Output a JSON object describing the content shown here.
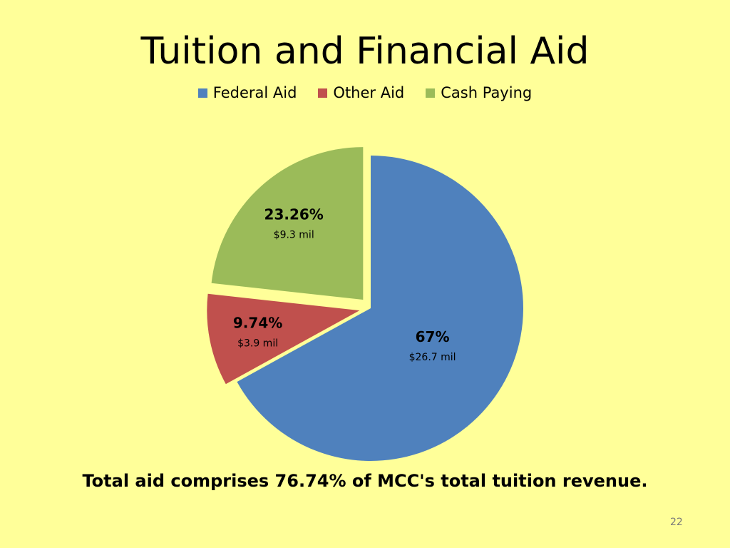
{
  "slide": {
    "background": "#FFFF99",
    "title": "Tuition and Financial Aid",
    "footer_text": "Total aid comprises  76.74% of MCC's total tuition revenue.",
    "page_number": "22"
  },
  "chart_data": {
    "type": "pie",
    "title": "Tuition and Financial Aid",
    "legend_position": "top",
    "slices": [
      {
        "name": "Federal Aid",
        "value": 67,
        "percent_label": "67%",
        "amount_label": "$26.7 mil",
        "color": "#4F81BD",
        "exploded": false
      },
      {
        "name": "Other Aid",
        "value": 9.74,
        "percent_label": "9.74%",
        "amount_label": "$3.9 mil",
        "color": "#C0504D",
        "exploded": true
      },
      {
        "name": "Cash Paying",
        "value": 23.26,
        "percent_label": "23.26%",
        "amount_label": "$9.3 mil",
        "color": "#9BBB59",
        "exploded": true
      }
    ]
  }
}
